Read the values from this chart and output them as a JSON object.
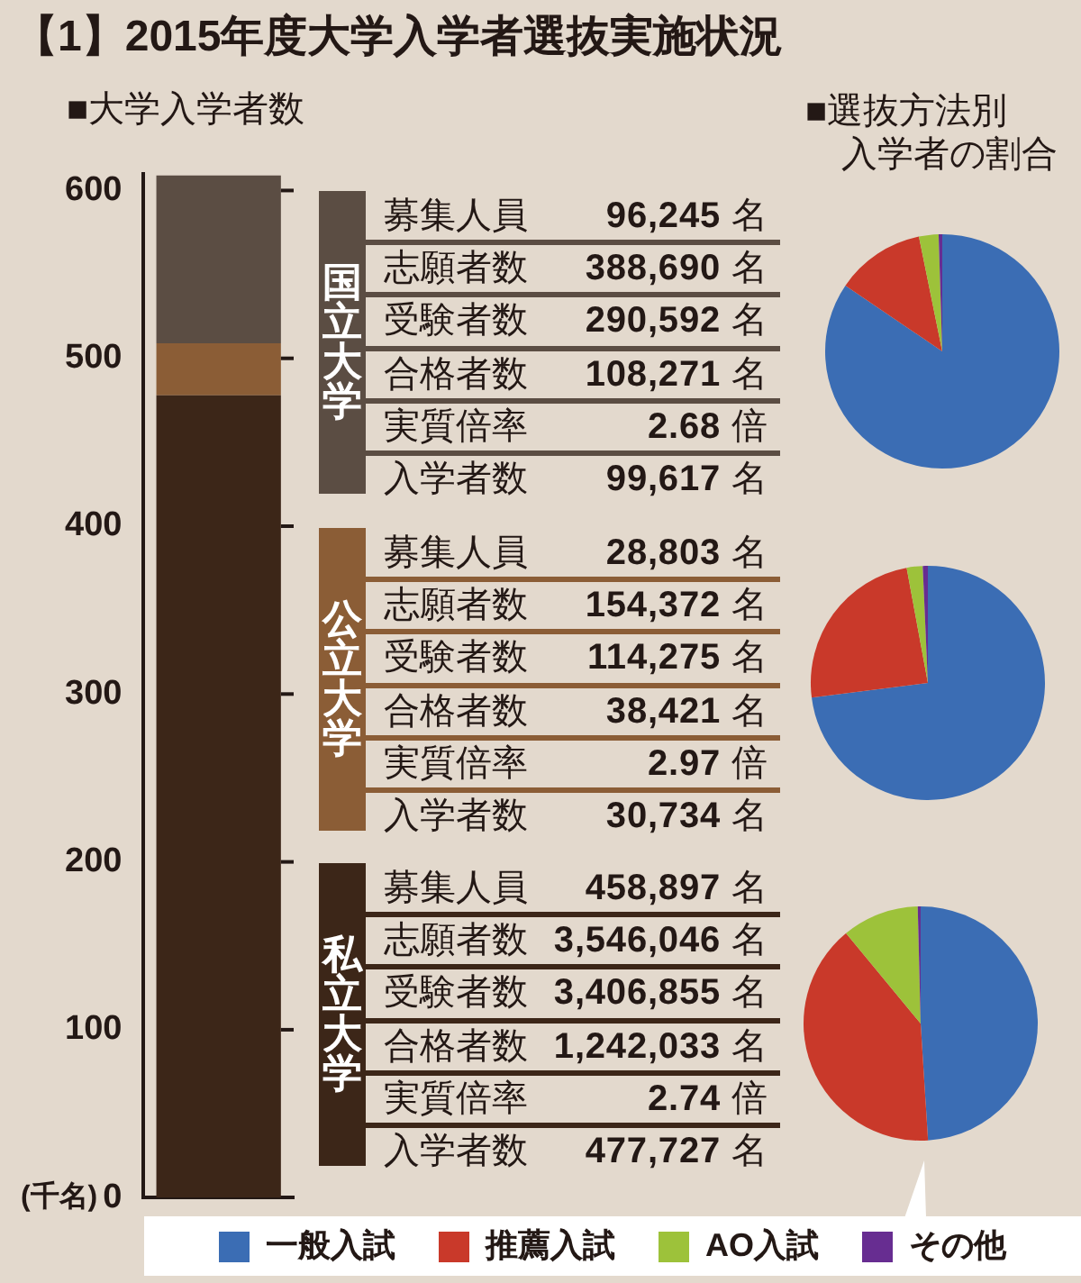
{
  "chart_data": [
    {
      "type": "bar",
      "title": "【1】2015年度大学入学者選抜実施状況",
      "subtitle": "■大学入学者数",
      "ylabel": "(千名)",
      "categories": [
        null
      ],
      "stacked": true,
      "tick_labels": "y",
      "ylim": [
        0,
        610
      ],
      "yticks": [
        0,
        100,
        200,
        300,
        400,
        500,
        600
      ],
      "series": [
        {
          "color": "#3c2618",
          "values": [
            478
          ]
        },
        {
          "color": "#8b5d36",
          "values": [
            31
          ]
        },
        {
          "color": "#5b4d43",
          "values": [
            100
          ]
        }
      ]
    },
    {
      "type": "other",
      "title": "国立大学",
      "color": "#5b4d43",
      "annotations": [
        "募集人員 96,245 名",
        "志願者数 388,690 名",
        "受験者数 290,592 名",
        "合格者数 108,271 名",
        "実質倍率 2.68 倍",
        "入学者数 99,617 名"
      ]
    },
    {
      "type": "pie",
      "title": "■選抜方法別入学者の割合",
      "categories": [
        null,
        null,
        null,
        null
      ],
      "values": [
        84.5,
        12.3,
        2.7,
        0.5
      ],
      "colors": [
        "#3b6db4",
        "#c9392a",
        "#9dc23a",
        "#672d91"
      ]
    },
    {
      "type": "other",
      "title": "公立大学",
      "color": "#8b5d36",
      "annotations": [
        "募集人員 28,803 名",
        "志願者数 154,372 名",
        "受験者数 114,275 名",
        "合格者数 38,421 名",
        "実質倍率 2.97 倍",
        "入学者数 30,734 名"
      ]
    },
    {
      "type": "pie",
      "categories": [
        null,
        null,
        null,
        null
      ],
      "values": [
        73.0,
        24.1,
        2.2,
        0.7
      ],
      "colors": [
        "#3b6db4",
        "#c9392a",
        "#9dc23a",
        "#672d91"
      ]
    },
    {
      "type": "other",
      "title": "私立大学",
      "color": "#3c2618",
      "annotations": [
        "募集人員 458,897 名",
        "志願者数 3,546,046 名",
        "受験者数 3,406,855 名",
        "合格者数 1,242,033 名",
        "実質倍率 2.74 倍",
        "入学者数 477,727 名"
      ]
    },
    {
      "type": "pie",
      "categories": [
        "一般入試",
        "推薦入試",
        "AO入試",
        "その他"
      ],
      "values": [
        49.0,
        40.0,
        10.6,
        0.4
      ],
      "colors": [
        "#3b6db4",
        "#c9392a",
        "#9dc23a",
        "#672d91"
      ],
      "legend": "bottom"
    }
  ]
}
